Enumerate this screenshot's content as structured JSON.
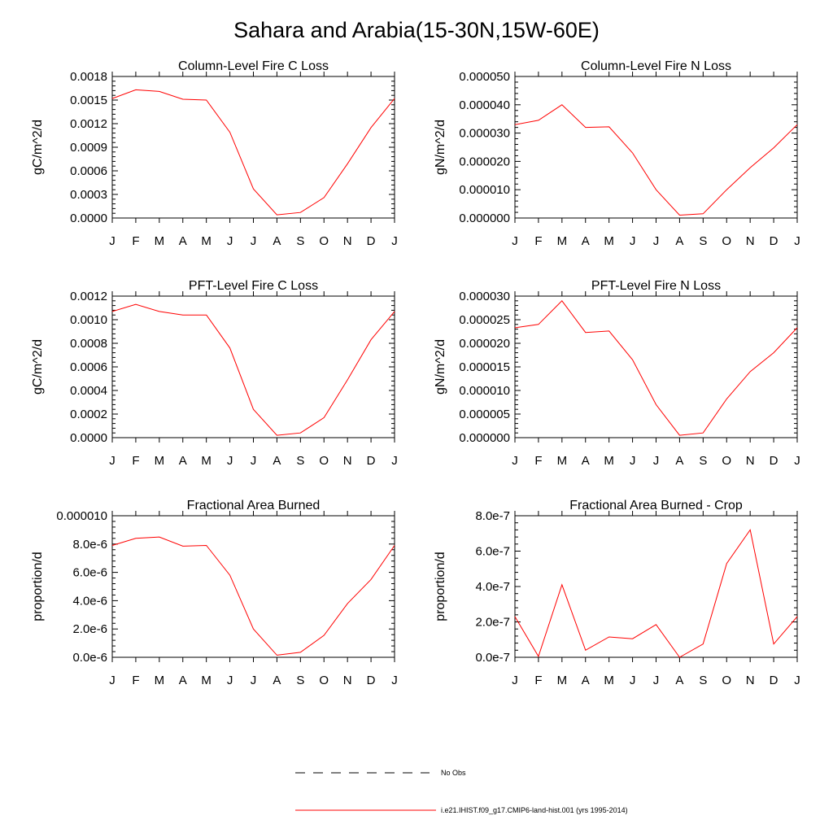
{
  "page": {
    "title": "Sahara and Arabia(15-30N,15W-60E)"
  },
  "legend": {
    "items": [
      {
        "label": "No Obs",
        "style": "dashed",
        "color": "#000000"
      },
      {
        "label": "i.e21.IHIST.f09_g17.CMIP6-land-hist.001 (yrs 1995-2014)",
        "style": "solid",
        "color": "#ff0000"
      }
    ]
  },
  "colors": {
    "series": "#ff0000",
    "axis": "#000000"
  },
  "chart_data": [
    {
      "type": "line",
      "title": "Column-Level Fire C Loss",
      "ylabel": "gC/m^2/d",
      "categories": [
        "J",
        "F",
        "M",
        "A",
        "M",
        "J",
        "J",
        "A",
        "S",
        "O",
        "N",
        "D",
        "J"
      ],
      "ylim": [
        0,
        0.0018
      ],
      "yticks": [
        "0.0000",
        "0.0003",
        "0.0006",
        "0.0009",
        "0.0012",
        "0.0015",
        "0.0018"
      ],
      "values": [
        0.00152,
        0.00163,
        0.00161,
        0.00151,
        0.0015,
        0.00109,
        0.00037,
        4e-05,
        7e-05,
        0.00026,
        0.00069,
        0.00115,
        0.00152
      ]
    },
    {
      "type": "line",
      "title": "Column-Level Fire N Loss",
      "ylabel": "gN/m^2/d",
      "categories": [
        "J",
        "F",
        "M",
        "A",
        "M",
        "J",
        "J",
        "A",
        "S",
        "O",
        "N",
        "D",
        "J"
      ],
      "ylim": [
        0,
        5e-05
      ],
      "yticks": [
        "0.000000",
        "0.000010",
        "0.000020",
        "0.000030",
        "0.000040",
        "0.000050"
      ],
      "values": [
        3.3e-05,
        3.45e-05,
        4e-05,
        3.2e-05,
        3.22e-05,
        2.3e-05,
        1e-05,
        1e-06,
        1.5e-06,
        1e-05,
        1.78e-05,
        2.48e-05,
        3.3e-05
      ]
    },
    {
      "type": "line",
      "title": "PFT-Level Fire C Loss",
      "ylabel": "gC/m^2/d",
      "categories": [
        "J",
        "F",
        "M",
        "A",
        "M",
        "J",
        "J",
        "A",
        "S",
        "O",
        "N",
        "D",
        "J"
      ],
      "ylim": [
        0,
        0.0012
      ],
      "yticks": [
        "0.0000",
        "0.0002",
        "0.0004",
        "0.0006",
        "0.0008",
        "0.0010",
        "0.0012"
      ],
      "values": [
        0.00107,
        0.00113,
        0.00107,
        0.00104,
        0.00104,
        0.00076,
        0.00024,
        2e-05,
        4e-05,
        0.00017,
        0.00049,
        0.00083,
        0.00107
      ]
    },
    {
      "type": "line",
      "title": "PFT-Level Fire N Loss",
      "ylabel": "gN/m^2/d",
      "categories": [
        "J",
        "F",
        "M",
        "A",
        "M",
        "J",
        "J",
        "A",
        "S",
        "O",
        "N",
        "D",
        "J"
      ],
      "ylim": [
        0,
        3e-05
      ],
      "yticks": [
        "0.000000",
        "0.000005",
        "0.000010",
        "0.000015",
        "0.000020",
        "0.000025",
        "0.000030"
      ],
      "values": [
        2.33e-05,
        2.4e-05,
        2.9e-05,
        2.23e-05,
        2.26e-05,
        1.65e-05,
        7e-06,
        5e-07,
        1e-06,
        8.2e-06,
        1.4e-05,
        1.8e-05,
        2.33e-05
      ]
    },
    {
      "type": "line",
      "title": "Fractional Area Burned",
      "ylabel": "proportion/d",
      "categories": [
        "J",
        "F",
        "M",
        "A",
        "M",
        "J",
        "J",
        "A",
        "S",
        "O",
        "N",
        "D",
        "J"
      ],
      "ylim": [
        0,
        1e-05
      ],
      "yticks": [
        "0.0e-6",
        "2.0e-6",
        "4.0e-6",
        "6.0e-6",
        "8.0e-6",
        "0.000010"
      ],
      "values": [
        7.9e-06,
        8.4e-06,
        8.5e-06,
        7.85e-06,
        7.9e-06,
        5.8e-06,
        2e-06,
        1.5e-07,
        3.5e-07,
        1.55e-06,
        3.8e-06,
        5.5e-06,
        7.9e-06
      ]
    },
    {
      "type": "line",
      "title": "Fractional Area Burned - Crop",
      "ylabel": "proportion/d",
      "categories": [
        "J",
        "F",
        "M",
        "A",
        "M",
        "J",
        "J",
        "A",
        "S",
        "O",
        "N",
        "D",
        "J"
      ],
      "ylim": [
        0,
        8e-07
      ],
      "yticks": [
        "0.0e-7",
        "2.0e-7",
        "4.0e-7",
        "6.0e-7",
        "8.0e-7"
      ],
      "values": [
        2.3e-07,
        5e-09,
        4.1e-07,
        4e-08,
        1.15e-07,
        1.05e-07,
        1.85e-07,
        0.0,
        7.5e-08,
        5.3e-07,
        7.2e-07,
        7.5e-08,
        2.3e-07
      ]
    }
  ]
}
